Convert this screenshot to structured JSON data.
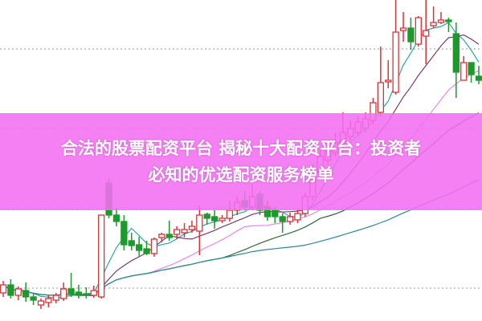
{
  "banner": {
    "title_line1": "合法的股票配资平台 揭秘十大配资平台：投资者",
    "title_line2": "必知的优选配资服务榜单"
  },
  "colors": {
    "up": "#d9343a",
    "down": "#1c9a2c",
    "ma5": "#2aa6a6",
    "ma10": "#7a3a6e",
    "ma20": "#e88ae8",
    "ma30": "#2f6b2f",
    "ma60": "#2a8a9a",
    "banner": "#f26ef2"
  },
  "chart_data": {
    "type": "candlestick",
    "title": "",
    "xlabel": "",
    "ylabel": "",
    "ylim": [
      0,
      400
    ],
    "grid": "dotted horizontal",
    "moving_averages": [
      5,
      10,
      20,
      30,
      60
    ],
    "candles": [
      [
        35,
        45,
        50,
        30
      ],
      [
        45,
        32,
        52,
        28
      ],
      [
        32,
        40,
        43,
        26
      ],
      [
        38,
        30,
        48,
        24
      ],
      [
        30,
        26,
        34,
        20
      ],
      [
        20,
        25,
        28,
        15
      ],
      [
        23,
        28,
        32,
        17
      ],
      [
        26,
        32,
        35,
        22
      ],
      [
        28,
        40,
        48,
        25
      ],
      [
        40,
        33,
        60,
        30
      ],
      [
        36,
        32,
        45,
        28
      ],
      [
        34,
        32,
        42,
        28
      ],
      [
        32,
        38,
        44,
        29
      ],
      [
        30,
        132,
        132,
        28
      ],
      [
        172,
        132,
        178,
        128
      ],
      [
        132,
        124,
        142,
        118
      ],
      [
        124,
        95,
        132,
        88
      ],
      [
        100,
        94,
        110,
        88
      ],
      [
        95,
        88,
        105,
        80
      ],
      [
        90,
        84,
        100,
        82
      ],
      [
        84,
        102,
        104,
        80
      ],
      [
        104,
        108,
        110,
        98
      ],
      [
        108,
        104,
        125,
        100
      ],
      [
        108,
        114,
        118,
        102
      ],
      [
        110,
        114,
        122,
        104
      ],
      [
        114,
        118,
        125,
        110
      ],
      [
        112,
        132,
        144,
        82
      ],
      [
        133,
        128,
        135,
        120
      ],
      [
        130,
        125,
        138,
        115
      ],
      [
        125,
        128,
        132,
        122
      ],
      [
        128,
        138,
        150,
        124
      ],
      [
        138,
        148,
        155,
        132
      ],
      [
        150,
        142,
        162,
        138
      ],
      [
        142,
        155,
        170,
        138
      ],
      [
        158,
        138,
        162,
        132
      ],
      [
        142,
        130,
        150,
        125
      ],
      [
        138,
        130,
        142,
        122
      ],
      [
        130,
        124,
        134,
        110
      ],
      [
        124,
        130,
        135,
        120
      ],
      [
        126,
        134,
        140,
        122
      ],
      [
        134,
        155,
        160,
        130
      ],
      [
        155,
        185,
        195,
        150
      ],
      [
        185,
        205,
        215,
        180
      ],
      [
        200,
        212,
        220,
        195
      ],
      [
        210,
        222,
        235,
        205
      ],
      [
        220,
        235,
        260,
        215
      ],
      [
        230,
        240,
        250,
        225
      ],
      [
        235,
        248,
        255,
        230
      ],
      [
        240,
        252,
        260,
        235
      ],
      [
        250,
        272,
        278,
        245
      ],
      [
        260,
        297,
        342,
        255
      ],
      [
        298,
        300,
        325,
        290
      ],
      [
        285,
        360,
        400,
        282
      ],
      [
        362,
        365,
        385,
        348
      ],
      [
        365,
        348,
        378,
        338
      ],
      [
        345,
        378,
        380,
        342
      ],
      [
        355,
        362,
        400,
        320
      ],
      [
        368,
        372,
        392,
        365
      ],
      [
        372,
        375,
        385,
        370
      ],
      [
        375,
        373,
        378,
        360
      ],
      [
        358,
        310,
        372,
        278
      ],
      [
        300,
        322,
        330,
        300
      ],
      [
        322,
        307,
        322,
        297
      ],
      [
        305,
        300,
        318,
        295
      ]
    ],
    "candle_fields": [
      "open",
      "close",
      "high",
      "low"
    ]
  }
}
